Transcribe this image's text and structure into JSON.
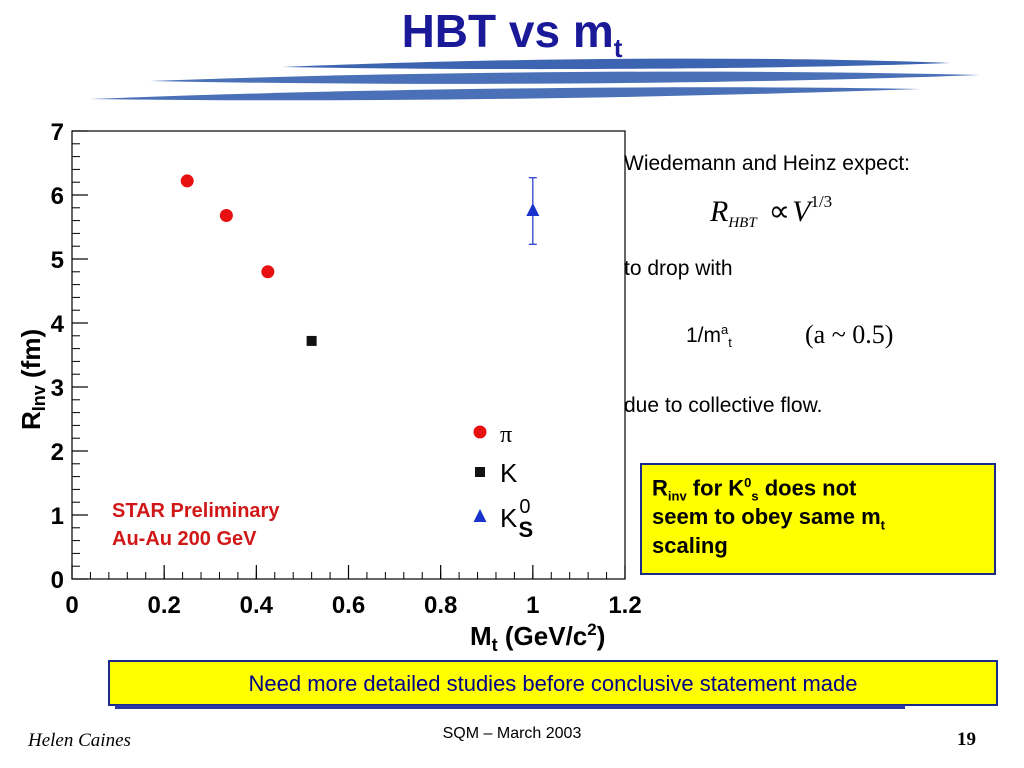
{
  "slide": {
    "title_main": "HBT vs m",
    "title_sub": "t",
    "footer_left": "Helen Caines",
    "footer_center": "SQM  – March 2003",
    "page_number": "19"
  },
  "text": {
    "wiedemann": "Wiedemann and Heinz expect:",
    "formula_R": "R",
    "formula_sub": "HBT",
    "formula_prop": "∝",
    "formula_V": "V",
    "formula_exp": "1/3",
    "to_drop": "to drop with",
    "m_base": "1/m",
    "m_sup": "a",
    "m_sub": "t",
    "a_approx": "(a ~ 0.5)",
    "due_to": "due to collective flow.",
    "box1_r": "R",
    "box1_inv": "inv",
    "box1_for": " for  K",
    "box1_zero": "0",
    "box1_s": "s",
    "box1_rest1": "  does not",
    "box1_line2": "seem to  obey same m",
    "box1_line2_sub": "t",
    "box1_line3": "scaling",
    "box2": "Need more detailed studies before conclusive statement made"
  },
  "colors": {
    "title": "#1a1a99",
    "pion": "#e81010",
    "kaon": "#111111",
    "k0s": "#1a33cc",
    "star_label": "#d01818",
    "box_fill": "#ffff00",
    "box_border": "#1a2a8a"
  },
  "chart_data": {
    "type": "scatter",
    "xlabel": "M",
    "xlabel_sub": "t",
    "xlabel_unit": "(GeV/c",
    "xlabel_unit_sup": "2",
    "xlabel_unit_end": ")",
    "ylabel": "R",
    "ylabel_sub": "Inv",
    "ylabel_unit": "(fm)",
    "xlim": [
      0,
      1.2
    ],
    "ylim": [
      0,
      7
    ],
    "xticks": [
      "0",
      "0.2",
      "0.4",
      "0.6",
      "0.8",
      "1",
      "1.2"
    ],
    "yticks": [
      "0",
      "1",
      "2",
      "3",
      "4",
      "5",
      "6",
      "7"
    ],
    "annotation_line1": "STAR  Preliminary",
    "annotation_line2": "Au-Au  200  GeV",
    "legend_position": "bottom-right",
    "series": [
      {
        "name": "π",
        "marker": "circle",
        "points": [
          [
            0.25,
            6.22
          ],
          [
            0.335,
            5.68
          ],
          [
            0.425,
            4.8
          ]
        ]
      },
      {
        "name": "K",
        "marker": "square",
        "points": [
          [
            0.52,
            3.72
          ]
        ]
      },
      {
        "name": "K",
        "name_sup": "0",
        "name_sub": "S",
        "marker": "triangle",
        "points": [
          [
            1.0,
            5.75
          ]
        ],
        "errors": [
          0.52
        ]
      }
    ]
  }
}
